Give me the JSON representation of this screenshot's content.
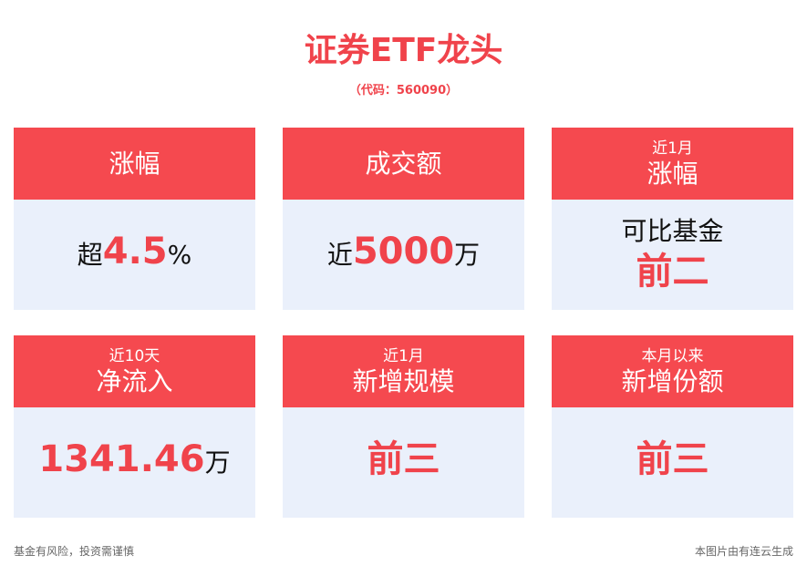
{
  "header": {
    "title": "证券ETF龙头",
    "subtitle": "（代码：560090）"
  },
  "cards": [
    {
      "header": {
        "main": "涨幅"
      },
      "lines": [
        [
          {
            "text": "超",
            "highlight": false
          },
          {
            "text": "4.5",
            "highlight": true
          },
          {
            "text": "%",
            "highlight": false
          }
        ]
      ]
    },
    {
      "header": {
        "main": "成交额"
      },
      "lines": [
        [
          {
            "text": "近",
            "highlight": false
          },
          {
            "text": "5000",
            "highlight": true
          },
          {
            "text": "万",
            "highlight": false
          }
        ]
      ]
    },
    {
      "header": {
        "sub": "近1月",
        "main": "涨幅"
      },
      "lines": [
        [
          {
            "text": "可比基金",
            "highlight": false
          }
        ],
        [
          {
            "text": "前二",
            "highlight": true
          }
        ]
      ]
    },
    {
      "header": {
        "sub": "近10天",
        "main": "净流入"
      },
      "lines": [
        [
          {
            "text": "1341.46",
            "highlight": true
          },
          {
            "text": "万",
            "highlight": false
          }
        ]
      ]
    },
    {
      "header": {
        "sub": "近1月",
        "main": "新增规模"
      },
      "lines": [
        [
          {
            "text": "前三",
            "highlight": true
          }
        ]
      ]
    },
    {
      "header": {
        "sub": "本月以来",
        "main": "新增份额"
      },
      "lines": [
        [
          {
            "text": "前三",
            "highlight": true
          }
        ]
      ]
    }
  ],
  "footer": {
    "left": "基金有风险，投资需谨慎",
    "right": "本图片由有连云生成"
  }
}
